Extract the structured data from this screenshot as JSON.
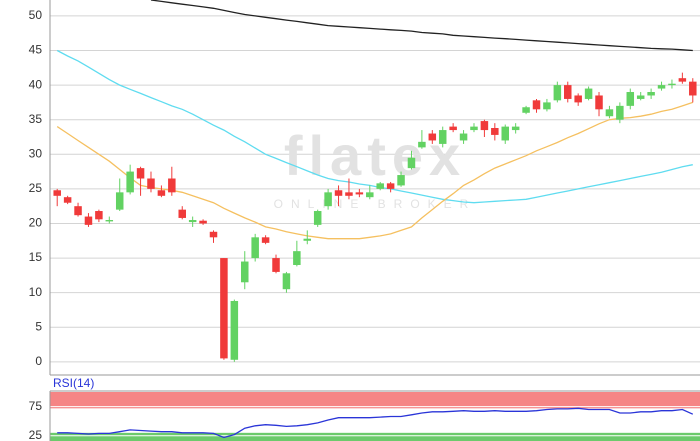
{
  "chart_data": [
    {
      "type": "candlestick",
      "watermark": "flatex",
      "watermark_subtitle": "ONLINE BROKER",
      "open": [
        24.8,
        23.8,
        22.5,
        21,
        21.8,
        20.3,
        22,
        24.5,
        28,
        26.5,
        24.8,
        26.5,
        22,
        20.2,
        20.4,
        18.8,
        15,
        0.3,
        11.5,
        15,
        18,
        15,
        10.5,
        14,
        17.5,
        19.8,
        22.5,
        24.8,
        24.5,
        24.5,
        23.8,
        25,
        25.8,
        25.5,
        28,
        31,
        33,
        31.5,
        34,
        32,
        33.5,
        34.8,
        33.8,
        32,
        33.5,
        36,
        37.8,
        36.5,
        37.8,
        40,
        38.5,
        38,
        38.5,
        35.5,
        35,
        37,
        38,
        38.5,
        39.5,
        40,
        41,
        40.5
      ],
      "high": [
        25,
        24,
        23,
        21.5,
        22,
        21,
        26.5,
        28.5,
        28.2,
        27.5,
        25.5,
        28.2,
        22.5,
        21,
        20.6,
        19,
        15,
        9,
        16,
        18.5,
        18.3,
        15.5,
        13,
        17.5,
        19,
        22,
        25,
        25.5,
        26.5,
        25,
        25.5,
        26,
        26,
        27.5,
        30.5,
        33.5,
        33.5,
        34,
        34.5,
        33.5,
        34.5,
        35,
        34.5,
        34.3,
        34.5,
        37,
        38,
        38,
        40.5,
        40.5,
        38.8,
        39.8,
        39,
        37,
        37.5,
        39.5,
        39,
        39.5,
        40.5,
        40.8,
        41.8,
        41
      ],
      "low": [
        22.5,
        22.8,
        21,
        19.5,
        20.2,
        20,
        21.8,
        24.2,
        24,
        24.5,
        23.8,
        24,
        20.6,
        19.5,
        19.8,
        17.2,
        0.3,
        0,
        10.5,
        14.5,
        17,
        12.8,
        10,
        13.8,
        17,
        19.5,
        22,
        22.5,
        23.5,
        23.8,
        23.5,
        24.8,
        24.5,
        25.3,
        27.8,
        30.8,
        31.5,
        31,
        33.2,
        31.5,
        33.2,
        32.5,
        32,
        31.5,
        33,
        35.8,
        36,
        36.2,
        37.5,
        37.5,
        37,
        37.8,
        35.5,
        35.2,
        34.5,
        36.5,
        37.8,
        38,
        39.2,
        39.5,
        40.2,
        37.5
      ],
      "close": [
        24,
        23,
        21.2,
        19.8,
        20.6,
        20.5,
        24.5,
        27.5,
        26.5,
        25,
        24,
        24.5,
        20.8,
        20.5,
        20,
        18,
        0.5,
        8.8,
        14.5,
        18,
        17.2,
        13,
        12.8,
        16,
        17.8,
        21.8,
        24.5,
        24,
        24,
        24.2,
        24.5,
        25.8,
        25,
        27,
        29.5,
        31.8,
        32,
        33.5,
        33.5,
        33,
        34,
        33.5,
        32.8,
        34,
        34,
        36.8,
        36.5,
        37.5,
        40,
        38,
        37.5,
        39.5,
        36.5,
        36.5,
        37,
        39,
        38.5,
        39,
        40,
        40.2,
        40.5,
        38.5
      ],
      "up_color": "#62d262",
      "down_color": "#f03a3a",
      "overlays": [
        {
          "color": "#222222",
          "values": [
            null,
            null,
            null,
            null,
            null,
            null,
            null,
            null,
            null,
            52.3,
            52.1,
            51.9,
            51.7,
            51.5,
            51.3,
            51.1,
            50.8,
            50.5,
            50.2,
            50,
            49.8,
            49.6,
            49.4,
            49.2,
            49,
            48.8,
            48.6,
            48.5,
            48.4,
            48.3,
            48.2,
            48.1,
            48,
            47.9,
            47.8,
            47.6,
            47.5,
            47.4,
            47.2,
            47.1,
            47,
            46.9,
            46.8,
            46.7,
            46.6,
            46.5,
            46.4,
            46.3,
            46.2,
            46.1,
            46,
            45.9,
            45.8,
            45.7,
            45.6,
            45.5,
            45.4,
            45.3,
            45.25,
            45.2,
            45.1,
            45
          ]
        },
        {
          "color": "#5fdcf0",
          "values": [
            45,
            44.2,
            43.5,
            42.6,
            41.7,
            40.8,
            40,
            39.4,
            38.8,
            38.2,
            37.6,
            37,
            36.5,
            35.8,
            35,
            34.2,
            33.5,
            32.6,
            31.8,
            30.9,
            30,
            29.4,
            28.8,
            28.2,
            27.6,
            27,
            26.5,
            26.2,
            26,
            25.7,
            25.5,
            25.2,
            25,
            24.7,
            24.4,
            24.1,
            23.8,
            23.5,
            23.3,
            23.1,
            23,
            23.1,
            23.2,
            23.3,
            23.4,
            23.5,
            23.8,
            24.1,
            24.4,
            24.7,
            25,
            25.3,
            25.6,
            25.9,
            26.2,
            26.5,
            26.8,
            27.1,
            27.4,
            27.8,
            28.2,
            28.5
          ]
        },
        {
          "color": "#f5c060",
          "values": [
            34,
            33,
            32,
            31,
            30,
            29,
            27.8,
            26.6,
            25.5,
            25.2,
            25,
            24.8,
            24.5,
            24,
            23.5,
            23,
            22.2,
            21.5,
            20.8,
            20.2,
            19.5,
            19.2,
            18.8,
            18.5,
            18.2,
            18,
            17.8,
            17.8,
            17.8,
            17.8,
            18,
            18.2,
            18.5,
            19,
            19.5,
            20.8,
            22,
            23.2,
            24.3,
            25.5,
            26.3,
            27.2,
            28,
            28.6,
            29.2,
            29.8,
            30.5,
            31.1,
            31.7,
            32.4,
            33,
            33.7,
            34.4,
            35,
            35.2,
            35.3,
            35.5,
            35.8,
            36.2,
            36.5,
            37,
            37.5
          ]
        }
      ],
      "ylim": [
        -1.9,
        52.3
      ],
      "yticks": [
        0,
        5,
        10,
        15,
        20,
        25,
        30,
        35,
        40,
        45,
        50
      ],
      "grid": true
    },
    {
      "type": "line",
      "title": "RSI(14)",
      "values": [
        30,
        30,
        29,
        28,
        29,
        29,
        32,
        35,
        34,
        33,
        32,
        32,
        30,
        30,
        30,
        29,
        22,
        27,
        38,
        42,
        44,
        43,
        41,
        42,
        44,
        47,
        52,
        56,
        56,
        56,
        56,
        57,
        58,
        58,
        61,
        64,
        66,
        66,
        67,
        68,
        67,
        67,
        68,
        67,
        67,
        67,
        68,
        70,
        71,
        71,
        72,
        70,
        70,
        70,
        64,
        64,
        66,
        66,
        68,
        68,
        70,
        62
      ],
      "color": "#2a35d8",
      "bands": [
        {
          "from": 72,
          "to": 100,
          "color": "#f47878"
        },
        {
          "from": 16,
          "to": 30,
          "color": "#5cc45c"
        }
      ],
      "ylim": [
        16,
        100
      ],
      "yticks": [
        25,
        75
      ],
      "grid": true
    }
  ]
}
